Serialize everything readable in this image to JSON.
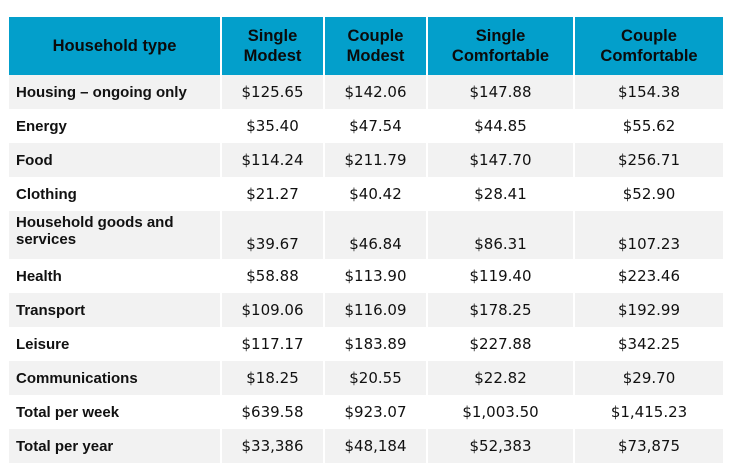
{
  "table": {
    "headers": [
      "Household type",
      "Single Modest",
      "Couple Modest",
      "Single Comfortable",
      "Couple Comfortable"
    ],
    "header_lines": [
      [
        "Household type"
      ],
      [
        "Single",
        "Modest"
      ],
      [
        "Couple",
        "Modest"
      ],
      [
        "Single",
        "Comfortable"
      ],
      [
        "Couple",
        "Comfortable"
      ]
    ],
    "rows": [
      {
        "label": "Housing – ongoing only",
        "values": [
          "$125.65",
          "$142.06",
          "$147.88",
          "$154.38"
        ]
      },
      {
        "label": "Energy",
        "values": [
          "$35.40",
          "$47.54",
          "$44.85",
          "$55.62"
        ]
      },
      {
        "label": "Food",
        "values": [
          "$114.24",
          "$211.79",
          "$147.70",
          "$256.71"
        ]
      },
      {
        "label": "Clothing",
        "values": [
          "$21.27",
          "$40.42",
          "$28.41",
          "$52.90"
        ]
      },
      {
        "label": "Household goods and services",
        "values": [
          "$39.67",
          "$46.84",
          "$86.31",
          "$107.23"
        ]
      },
      {
        "label": "Health",
        "values": [
          "$58.88",
          "$113.90",
          "$119.40",
          "$223.46"
        ]
      },
      {
        "label": "Transport",
        "values": [
          "$109.06",
          "$116.09",
          "$178.25",
          "$192.99"
        ]
      },
      {
        "label": "Leisure",
        "values": [
          "$117.17",
          "$183.89",
          "$227.88",
          "$342.25"
        ]
      },
      {
        "label": "Communications",
        "values": [
          "$18.25",
          "$20.55",
          "$22.82",
          "$29.70"
        ]
      },
      {
        "label": "Total per week",
        "values": [
          "$639.58",
          "$923.07",
          "$1,003.50",
          "$1,415.23"
        ]
      },
      {
        "label": "Total per year",
        "values": [
          "$33,386",
          "$48,184",
          "$52,383",
          "$73,875"
        ]
      }
    ]
  },
  "colors": {
    "header_bg": "#039fcb",
    "stripe_bg": "#f2f2f2",
    "row_bg": "#ffffff"
  }
}
